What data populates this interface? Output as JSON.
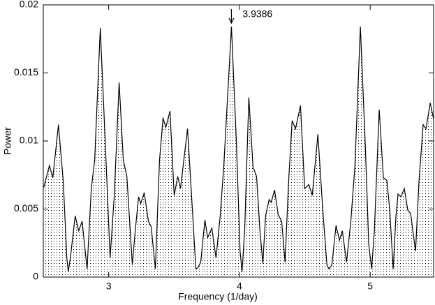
{
  "chart_data": {
    "type": "area",
    "xlabel": "Frequency (1/day)",
    "ylabel": "Power",
    "annotation": {
      "text": "3.9386",
      "x": 3.9386
    },
    "color": "#000000",
    "x": [
      2.504,
      2.547,
      2.573,
      2.616,
      2.653,
      2.68,
      2.691,
      2.707,
      2.744,
      2.771,
      2.797,
      2.835,
      2.867,
      2.893,
      2.936,
      2.973,
      3.011,
      3.043,
      3.08,
      3.112,
      3.139,
      3.165,
      3.181,
      3.203,
      3.229,
      3.245,
      3.272,
      3.304,
      3.325,
      3.357,
      3.389,
      3.416,
      3.437,
      3.469,
      3.501,
      3.528,
      3.549,
      3.603,
      3.64,
      3.667,
      3.683,
      3.704,
      3.736,
      3.757,
      3.789,
      3.821,
      3.853,
      3.88,
      3.939,
      3.976,
      4.005,
      4.02,
      4.04,
      4.072,
      4.104,
      4.131,
      4.157,
      4.179,
      4.2,
      4.227,
      4.243,
      4.269,
      4.296,
      4.323,
      4.349,
      4.376,
      4.403,
      4.429,
      4.467,
      4.499,
      4.531,
      4.557,
      4.6,
      4.637,
      4.669,
      4.685,
      4.707,
      4.739,
      4.765,
      4.787,
      4.819,
      4.851,
      4.883,
      4.925,
      4.963,
      4.989,
      5.011,
      5.032,
      5.069,
      5.101,
      5.128,
      5.149,
      5.176,
      5.197,
      5.213,
      5.235,
      5.261,
      5.288,
      5.309,
      5.347,
      5.373,
      5.405,
      5.427,
      5.459,
      5.485
    ],
    "values": [
      0.0066,
      0.0082,
      0.0073,
      0.0112,
      0.007,
      0.0014,
      0.0004,
      0.0014,
      0.0045,
      0.0034,
      0.0041,
      0.0006,
      0.0065,
      0.0086,
      0.0183,
      0.0101,
      0.0014,
      0.006,
      0.0143,
      0.0086,
      0.0074,
      0.0034,
      0.0009,
      0.0034,
      0.0059,
      0.0054,
      0.0062,
      0.0041,
      0.0037,
      0.0006,
      0.0086,
      0.0117,
      0.011,
      0.0122,
      0.006,
      0.0074,
      0.0065,
      0.0109,
      0.005,
      0.0006,
      0.0007,
      0.0011,
      0.0042,
      0.0029,
      0.0036,
      0.0014,
      0.0045,
      0.0081,
      0.0184,
      0.0101,
      0.0019,
      0.0004,
      0.0034,
      0.0132,
      0.0081,
      0.0074,
      0.0034,
      0.001,
      0.0045,
      0.0057,
      0.0055,
      0.0064,
      0.0046,
      0.0041,
      0.0011,
      0.007,
      0.0115,
      0.0109,
      0.0126,
      0.0065,
      0.0068,
      0.006,
      0.0105,
      0.005,
      0.0009,
      0.0006,
      0.0009,
      0.0038,
      0.0027,
      0.0034,
      0.0011,
      0.004,
      0.0081,
      0.0184,
      0.0096,
      0.0024,
      0.0006,
      0.0034,
      0.0123,
      0.0073,
      0.0071,
      0.005,
      0.0006,
      0.0045,
      0.0061,
      0.0059,
      0.0065,
      0.0049,
      0.0047,
      0.0019,
      0.007,
      0.0112,
      0.0109,
      0.0128,
      0.0116
    ],
    "xlim": [
      2.5,
      5.485
    ],
    "ylim": [
      0,
      0.02
    ],
    "xticks": [
      3,
      4,
      5
    ],
    "yticks": [
      0,
      0.005,
      0.01,
      0.015,
      0.02
    ]
  }
}
